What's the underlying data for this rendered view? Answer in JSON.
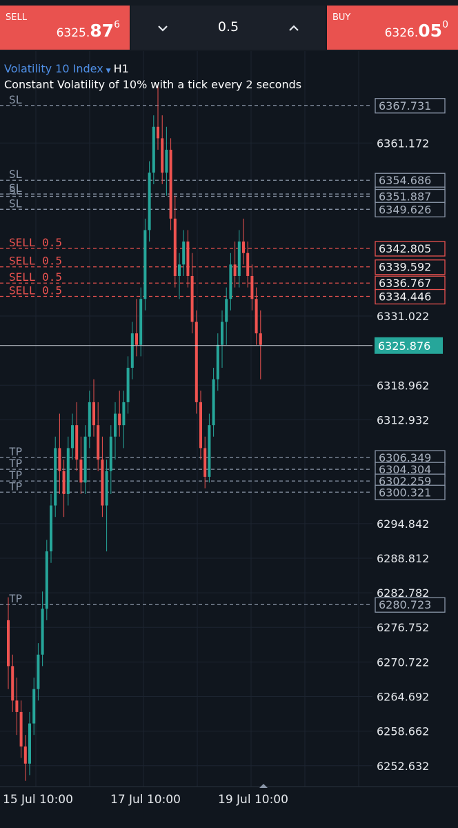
{
  "toolbar": {
    "sell_label": "SELL",
    "sell_price_prefix": "6325.",
    "sell_price_big": "87",
    "sell_price_sup": "6",
    "buy_label": "BUY",
    "buy_price_prefix": "6326.",
    "buy_price_big": "05",
    "buy_price_sup": "0",
    "lot_size": "0.5",
    "decrease_icon": "chevron-down-icon",
    "increase_icon": "chevron-up-icon"
  },
  "instrument": {
    "name": "Volatility 10 Index",
    "dropdown_icon": "caret-down-icon",
    "timeframe": "H1",
    "description": "Constant Volatility of 10% with a tick every 2 seconds"
  },
  "colors": {
    "background": "#10161e",
    "bull": "#26a69a",
    "bear": "#ef5350",
    "sell_button": "#e9524f",
    "current_price": "#26a69a",
    "sl_tp_line": "#8a96a8",
    "sell_line": "#e9524f"
  },
  "chart_data": {
    "type": "candlestick",
    "y_range": [
      6249,
      6376
    ],
    "grid": true,
    "current_price": "6325.876",
    "y_ticks": [
      "6361.172",
      "6331.022",
      "6318.962",
      "6312.932",
      "6294.842",
      "6288.812",
      "6282.782",
      "6276.752",
      "6270.722",
      "6264.692",
      "6258.662",
      "6252.632"
    ],
    "x_ticks": [
      "15 Jul 10:00",
      "17 Jul 10:00",
      "19 Jul 10:00"
    ],
    "x_tick_index": [
      0,
      40,
      80
    ],
    "candles": [
      [
        6278,
        6282,
        6266,
        6270
      ],
      [
        6270,
        6272,
        6262,
        6264
      ],
      [
        6264,
        6268,
        6258,
        6262
      ],
      [
        6262,
        6264,
        6254,
        6256
      ],
      [
        6256,
        6258,
        6250,
        6253
      ],
      [
        6253,
        6262,
        6251,
        6260
      ],
      [
        6260,
        6268,
        6258,
        6266
      ],
      [
        6266,
        6274,
        6264,
        6272
      ],
      [
        6272,
        6283,
        6270,
        6280
      ],
      [
        6280,
        6292,
        6278,
        6290
      ],
      [
        6290,
        6300,
        6288,
        6298
      ],
      [
        6298,
        6310,
        6296,
        6308
      ],
      [
        6308,
        6314,
        6300,
        6304
      ],
      [
        6304,
        6306,
        6296,
        6300
      ],
      [
        6300,
        6310,
        6298,
        6308
      ],
      [
        6308,
        6314,
        6306,
        6312
      ],
      [
        6312,
        6316,
        6304,
        6306
      ],
      [
        6306,
        6310,
        6300,
        6302
      ],
      [
        6302,
        6312,
        6300,
        6310
      ],
      [
        6310,
        6318,
        6308,
        6316
      ],
      [
        6316,
        6320,
        6310,
        6312
      ],
      [
        6312,
        6316,
        6304,
        6306
      ],
      [
        6306,
        6310,
        6296,
        6298
      ],
      [
        6298,
        6306,
        6290,
        6304
      ],
      [
        6304,
        6312,
        6300,
        6310
      ],
      [
        6310,
        6316,
        6306,
        6314
      ],
      [
        6314,
        6318,
        6310,
        6312
      ],
      [
        6312,
        6318,
        6308,
        6316
      ],
      [
        6316,
        6324,
        6314,
        6322
      ],
      [
        6322,
        6330,
        6320,
        6328
      ],
      [
        6328,
        6334,
        6324,
        6326
      ],
      [
        6326,
        6336,
        6324,
        6334
      ],
      [
        6334,
        6348,
        6332,
        6346
      ],
      [
        6346,
        6358,
        6344,
        6356
      ],
      [
        6356,
        6366,
        6354,
        6364
      ],
      [
        6364,
        6371,
        6360,
        6362
      ],
      [
        6362,
        6366,
        6354,
        6356
      ],
      [
        6356,
        6364,
        6352,
        6360
      ],
      [
        6360,
        6362,
        6346,
        6348
      ],
      [
        6348,
        6352,
        6336,
        6338
      ],
      [
        6338,
        6342,
        6334,
        6340
      ],
      [
        6340,
        6346,
        6338,
        6344
      ],
      [
        6344,
        6346,
        6336,
        6338
      ],
      [
        6338,
        6342,
        6328,
        6330
      ],
      [
        6330,
        6332,
        6314,
        6316
      ],
      [
        6316,
        6318,
        6306,
        6308
      ],
      [
        6308,
        6310,
        6301,
        6303
      ],
      [
        6303,
        6314,
        6302,
        6312
      ],
      [
        6312,
        6322,
        6310,
        6320
      ],
      [
        6320,
        6328,
        6318,
        6326
      ],
      [
        6326,
        6332,
        6322,
        6330
      ],
      [
        6330,
        6336,
        6326,
        6334
      ],
      [
        6334,
        6342,
        6332,
        6340
      ],
      [
        6340,
        6344,
        6336,
        6338
      ],
      [
        6338,
        6346,
        6336,
        6344
      ],
      [
        6344,
        6348,
        6340,
        6342
      ],
      [
        6342,
        6344,
        6336,
        6338
      ],
      [
        6338,
        6340,
        6332,
        6334
      ],
      [
        6334,
        6336,
        6326,
        6328
      ],
      [
        6328,
        6332,
        6320,
        6326
      ]
    ],
    "order_lines": [
      {
        "label": "SL",
        "price": "6367.731",
        "kind": "sl"
      },
      {
        "label": "SL",
        "price": "6354.686",
        "kind": "sl"
      },
      {
        "label": "SL",
        "price": "6352.286",
        "kind": "sl"
      },
      {
        "label": "SL",
        "price": "6351.887",
        "kind": "sl"
      },
      {
        "label": "SL",
        "price": "6349.626",
        "kind": "sl"
      },
      {
        "label": "SELL 0.5",
        "price": "6342.805",
        "kind": "sell"
      },
      {
        "label": "SELL 0.5",
        "price": "6339.592",
        "kind": "sell"
      },
      {
        "label": "SELL 0.5",
        "price": "6336.767",
        "kind": "sell"
      },
      {
        "label": "SELL 0.5",
        "price": "6334.446",
        "kind": "sell"
      },
      {
        "label": "TP",
        "price": "6306.349",
        "kind": "tp"
      },
      {
        "label": "TP",
        "price": "6304.304",
        "kind": "tp"
      },
      {
        "label": "TP",
        "price": "6302.259",
        "kind": "tp"
      },
      {
        "label": "TP",
        "price": "6300.321",
        "kind": "tp"
      },
      {
        "label": "TP",
        "price": "6280.723",
        "kind": "tp"
      }
    ]
  }
}
